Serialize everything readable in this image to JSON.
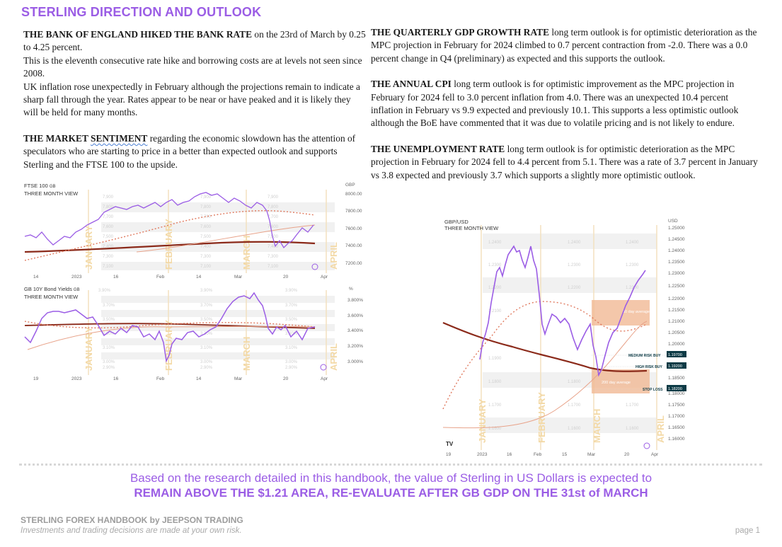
{
  "header": {
    "title": "STERLING DIRECTION AND OUTLOOK"
  },
  "left_column": {
    "boe": {
      "lead": "THE BANK OF ENGLAND HIKED THE BANK RATE",
      "body": " on the 23rd of March by 0.25 to 4.25 percent.",
      "line2": "This is the eleventh consecutive rate hike and borrowing costs are at levels not seen since 2008.",
      "line3": "UK inflation rose unexpectedly in February although the projections remain to indicate a sharp fall through the year. Rates appear to be near or have peaked and it is likely they will be held for many months."
    },
    "sentiment": {
      "lead_a": "THE MARKET ",
      "lead_b": "SENTIMENT",
      "body": " regarding the economic slowdown has the attention of speculators who are starting to price in a better than expected outlook and supports Sterling and the FTSE 100 to the upside."
    }
  },
  "right_column": {
    "gdp": {
      "lead": "THE QUARTERLY GDP GROWTH RATE",
      "body": " long term outlook is for optimistic deterioration as the MPC projection in February for 2024 climbed to 0.7 percent contraction from -2.0. There was a 0.0 percent change in Q4 (preliminary) as expected and this supports the outlook."
    },
    "cpi": {
      "lead": "THE ANNUAL CPI",
      "body": " long term outlook is for optimistic improvement as the MPC projection in February for 2024 fell to 3.0 percent inflation from 4.0. There was an unexpected 10.4 percent inflation in February vs 9.9 expected and previously 10.1. This supports a less optimistic outlook although the BoE have commented that it was due to volatile pricing and is not likely to endure."
    },
    "unemployment": {
      "lead": "THE UNEMPLOYMENT RATE",
      "body": " long term outlook is for optimistic deterioration as the MPC projection in February for 2024 fell to 4.4 percent from 5.1. There was a rate of 3.7 percent in January vs 3.8 expected and previously 3.7 which supports a slightly more optimistic outlook."
    }
  },
  "charts": {
    "ftse": {
      "title_a": "FTSE 100",
      "title_tag": "GB",
      "subtitle": "THREE MONTH VIEW",
      "currency": "GBP",
      "y_ticks": [
        "8000.00",
        "7800.00",
        "7600.00",
        "7400.00",
        "7200.00"
      ],
      "x_ticks": [
        "14",
        "2023",
        "16",
        "Feb",
        "14",
        "Mar",
        "20",
        "Apr"
      ],
      "months": [
        "JANUARY",
        "FEBRUARY",
        "MARCH",
        "APRIL"
      ],
      "grid_labels": [
        "7,900",
        "7,800",
        "7,700",
        "7,600",
        "7,500",
        "7,400",
        "7,300",
        "7,200",
        "7,100"
      ]
    },
    "gilts": {
      "title_a": "GB 10Y Bond Yields",
      "title_tag": "GB",
      "subtitle": "THREE MONTH VIEW",
      "unit": "%",
      "y_ticks": [
        "3.800%",
        "3.600%",
        "3.400%",
        "3.200%",
        "3.000%"
      ],
      "x_ticks": [
        "19",
        "2023",
        "16",
        "Feb",
        "14",
        "Mar",
        "20",
        "Apr"
      ],
      "months": [
        "JANUARY",
        "FEBRUARY",
        "MARCH",
        "APRIL"
      ],
      "grid_labels": [
        "3.90%",
        "3.80%",
        "3.70%",
        "3.60%",
        "3.50%",
        "3.40%",
        "3.30%",
        "3.20%",
        "3.10%",
        "3.00%",
        "2.90%"
      ]
    },
    "gbpusd": {
      "title_a": "GBP/USD",
      "subtitle": "THREE MONTH VIEW",
      "currency": "USD",
      "y_ticks": [
        "1.25000",
        "1.24500",
        "1.24000",
        "1.23500",
        "1.23000",
        "1.22500",
        "1.22000",
        "1.21500",
        "1.21000",
        "1.20500",
        "1.20000",
        "1.19500",
        "1.19000",
        "1.18500",
        "1.18000",
        "1.17500",
        "1.17000",
        "1.16500",
        "1.16000"
      ],
      "x_ticks": [
        "19",
        "2023",
        "16",
        "Feb",
        "15",
        "Mar",
        "20",
        "Apr"
      ],
      "months": [
        "JANUARY",
        "FEBRUARY",
        "MARCH",
        "APRIL"
      ],
      "grid_labels": [
        "1.2400",
        "1.2300",
        "1.2200",
        "1.2100",
        "1.1900",
        "1.1800",
        "1.1700",
        "1.1600"
      ],
      "zone_50": "50 day average",
      "zone_200": "200 day average",
      "medium_risk_label": "MEDIUM RISK BUY",
      "medium_risk_value": "1.19700",
      "high_risk_label": "HIGH RISK BUY",
      "high_risk_value": "1.19200",
      "stop_loss_label": "STOP LOSS",
      "stop_loss_value": "1.18200"
    }
  },
  "conclusion": {
    "line1": "Based on the research detailed in this handbook, the value of Sterling in US Dollars is expected to",
    "line2": "REMAIN ABOVE THE $1.21 AREA, RE-EVALUATE AFTER GB GDP ON THE 31st of MARCH"
  },
  "footer": {
    "brand": "STERLING FOREX HANDBOOK by JEEPSON TRADING",
    "disclaimer": "Investments and trading decisions are made at your own risk.",
    "page": "page 1"
  }
}
